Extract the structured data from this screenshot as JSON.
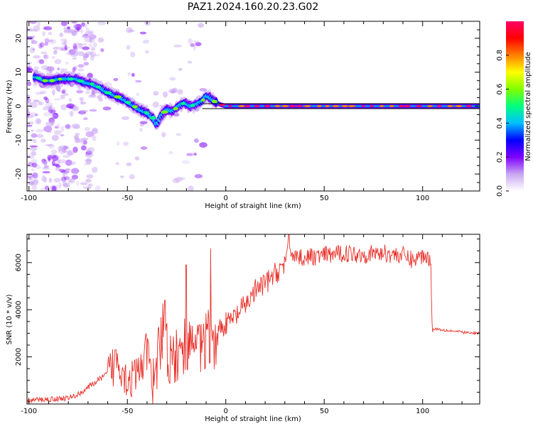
{
  "title": "PAZ1.2024.160.20.23.G02",
  "colors": {
    "trace": "#e8312a",
    "ridge_line": "#000000",
    "axis": "#000000",
    "colormap": [
      "#ffffff",
      "#c9a6f2",
      "#7f00ff",
      "#0000ff",
      "#00c0ff",
      "#00ff80",
      "#80ff00",
      "#ffff00",
      "#ff8000",
      "#ff0000",
      "#ff0066"
    ]
  },
  "chart_data": [
    {
      "type": "heatmap",
      "title": "PAZ1.2024.160.20.23.G02",
      "xlabel": "Height of straight line (km)",
      "ylabel": "Frequency (Hz)",
      "xlim": [
        -101,
        129
      ],
      "ylim": [
        -25,
        25
      ],
      "x_ticks": [
        -100,
        -50,
        0,
        50,
        100
      ],
      "y_ticks": [
        -20,
        -10,
        0,
        10,
        20
      ],
      "ridge": {
        "x": [
          -96,
          -92,
          -88,
          -84,
          -80,
          -76,
          -72,
          -68,
          -64,
          -60,
          -56,
          -52,
          -48,
          -44,
          -40,
          -37,
          -35,
          -33,
          -30,
          -27,
          -24,
          -21,
          -18,
          -15,
          -12,
          -10,
          -8,
          -6,
          -3,
          0,
          10,
          20,
          40,
          60,
          80,
          100,
          128
        ],
        "y": [
          8.5,
          7.5,
          7.5,
          8.0,
          8.0,
          8.0,
          7.0,
          6.5,
          5.5,
          4.0,
          3.0,
          2.0,
          0.5,
          -1.0,
          -2.0,
          -3.5,
          -5.5,
          -3.0,
          -1.0,
          -1.5,
          0,
          1.0,
          0.0,
          0.5,
          1.5,
          3.0,
          2.5,
          1.5,
          0.5,
          0,
          0,
          0,
          0,
          0,
          0,
          0,
          0
        ]
      },
      "reference_line_hz": 0,
      "colorbar": {
        "label": "Normalized spectral amplitude",
        "range": [
          0,
          1
        ],
        "ticks": [
          "0.0",
          "0.2",
          "0.4",
          "0.6",
          "0.8"
        ]
      }
    },
    {
      "type": "line",
      "xlabel": "Height of straight line (km)",
      "ylabel": "SNR (10 * v/v)",
      "xlim": [
        -101,
        129
      ],
      "ylim": [
        0,
        7200
      ],
      "x_ticks": [
        -100,
        -50,
        0,
        50,
        100
      ],
      "y_ticks": [
        2000,
        4000,
        6000
      ],
      "series": [
        {
          "x": [
            -101,
            -90,
            -80,
            -75,
            -70,
            -65,
            -60,
            -57,
            -55,
            -50,
            -45,
            -42,
            -40,
            -37,
            -34,
            -32,
            -30,
            -28,
            -25,
            -22,
            -20,
            -18,
            -15,
            -12,
            -10,
            -8,
            -6,
            -4,
            -2,
            0,
            5,
            10,
            15,
            20,
            25,
            30,
            32,
            35,
            40,
            50,
            60,
            70,
            80,
            90,
            95,
            100,
            104,
            105,
            106,
            110,
            115,
            120,
            125,
            129
          ],
          "values": [
            150,
            200,
            250,
            400,
            700,
            1000,
            1300,
            1600,
            2000,
            1000,
            1200,
            1800,
            2200,
            1200,
            2500,
            3500,
            2700,
            2200,
            2400,
            2600,
            3000,
            2600,
            2800,
            2800,
            3000,
            3200,
            2900,
            3300,
            3300,
            3400,
            3700,
            4200,
            4800,
            5100,
            5500,
            6000,
            6600,
            6300,
            6200,
            6300,
            6400,
            6350,
            6400,
            6300,
            6100,
            6300,
            6200,
            3100,
            3200,
            3150,
            3100,
            3050,
            3000,
            3000
          ]
        }
      ],
      "spikes": [
        {
          "x": -56,
          "y": 2300
        },
        {
          "x": -31,
          "y": 4400
        },
        {
          "x": -20,
          "y": 5900
        },
        {
          "x": -8,
          "y": 6600
        },
        {
          "x": 32,
          "y": 7200
        }
      ]
    }
  ]
}
